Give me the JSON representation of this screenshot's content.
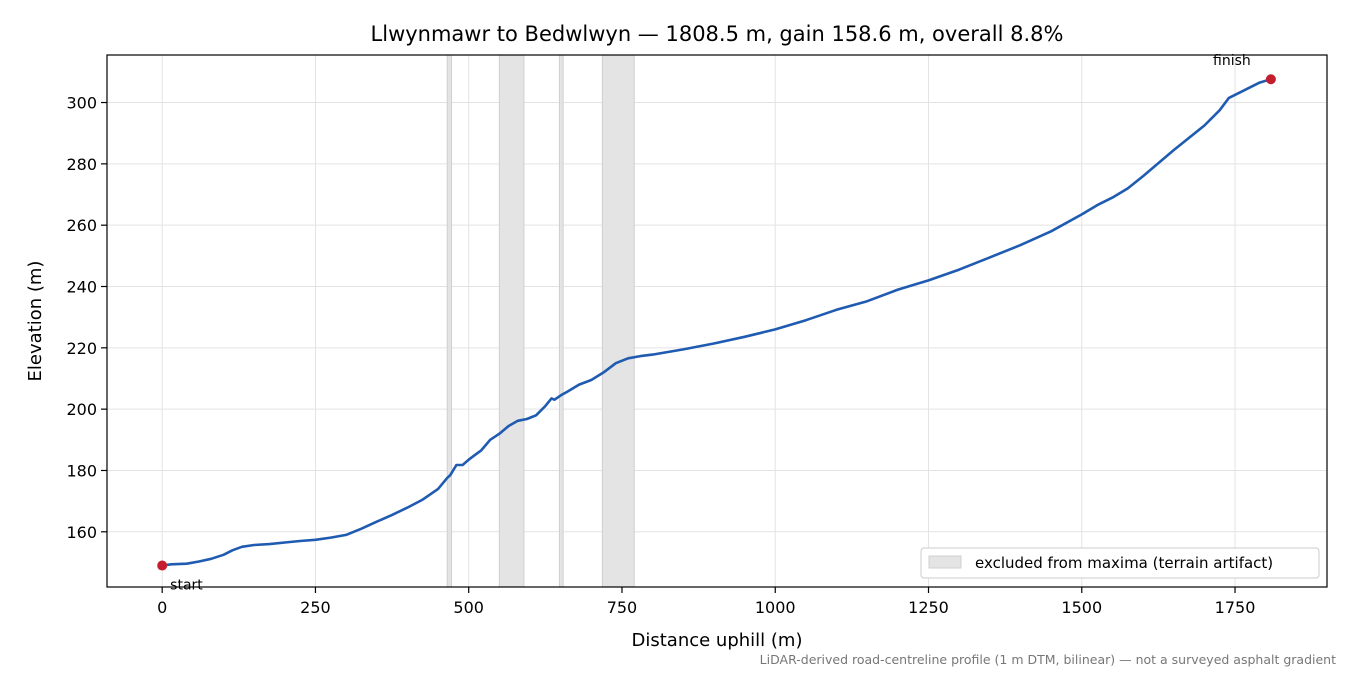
{
  "chart_data": {
    "type": "line",
    "title": "Llwynmawr to Bedwlwyn — 1808.5 m, gain 158.6 m, overall 8.8%",
    "xlabel": "Distance uphill (m)",
    "ylabel": "Elevation (m)",
    "xlim": [
      -90,
      1900
    ],
    "ylim": [
      142,
      315.5
    ],
    "x_ticks": [
      0,
      250,
      500,
      750,
      1000,
      1250,
      1500,
      1750
    ],
    "y_ticks": [
      160,
      180,
      200,
      220,
      240,
      260,
      280,
      300
    ],
    "grid": true,
    "legend_position": "lower-right",
    "series": [
      {
        "color": "#1f5bb0",
        "points": [
          [
            0,
            149
          ],
          [
            15,
            149.4
          ],
          [
            40,
            149.6
          ],
          [
            60,
            150.3
          ],
          [
            80,
            151.2
          ],
          [
            100,
            152.5
          ],
          [
            115,
            154
          ],
          [
            130,
            155.1
          ],
          [
            150,
            155.7
          ],
          [
            175,
            156
          ],
          [
            200,
            156.5
          ],
          [
            225,
            157
          ],
          [
            250,
            157.4
          ],
          [
            275,
            158.1
          ],
          [
            300,
            159
          ],
          [
            325,
            161
          ],
          [
            350,
            163.3
          ],
          [
            375,
            165.5
          ],
          [
            400,
            167.9
          ],
          [
            425,
            170.5
          ],
          [
            450,
            174
          ],
          [
            465,
            177.6
          ],
          [
            470,
            178.5
          ],
          [
            480,
            181.8
          ],
          [
            490,
            181.8
          ],
          [
            500,
            183.5
          ],
          [
            510,
            185
          ],
          [
            520,
            186.5
          ],
          [
            535,
            190
          ],
          [
            550,
            192
          ],
          [
            565,
            194.5
          ],
          [
            580,
            196.2
          ],
          [
            595,
            196.8
          ],
          [
            610,
            198
          ],
          [
            625,
            201
          ],
          [
            635,
            203.5
          ],
          [
            640,
            203.1
          ],
          [
            650,
            204.5
          ],
          [
            660,
            205.6
          ],
          [
            680,
            208
          ],
          [
            700,
            209.5
          ],
          [
            720,
            212
          ],
          [
            740,
            215
          ],
          [
            760,
            216.6
          ],
          [
            780,
            217.3
          ],
          [
            800,
            217.8
          ],
          [
            850,
            219.5
          ],
          [
            900,
            221.4
          ],
          [
            950,
            223.6
          ],
          [
            1000,
            226
          ],
          [
            1050,
            229
          ],
          [
            1100,
            232.4
          ],
          [
            1150,
            235.2
          ],
          [
            1200,
            239
          ],
          [
            1250,
            242
          ],
          [
            1300,
            245.5
          ],
          [
            1350,
            249.5
          ],
          [
            1400,
            253.5
          ],
          [
            1450,
            258
          ],
          [
            1500,
            263.5
          ],
          [
            1525,
            266.5
          ],
          [
            1550,
            269
          ],
          [
            1575,
            272
          ],
          [
            1600,
            276
          ],
          [
            1650,
            284.5
          ],
          [
            1700,
            292.5
          ],
          [
            1725,
            297.5
          ],
          [
            1740,
            301.5
          ],
          [
            1760,
            303.5
          ],
          [
            1790,
            306.5
          ],
          [
            1808.5,
            307.6
          ]
        ]
      }
    ],
    "excluded_ranges": [
      [
        465,
        472
      ],
      [
        550,
        590
      ],
      [
        648,
        654
      ],
      [
        718,
        770
      ]
    ],
    "excluded_color": "#e4e4e4",
    "markers": {
      "start": {
        "x": 0,
        "y": 149,
        "label": "start"
      },
      "finish": {
        "x": 1808.5,
        "y": 307.6,
        "label": "finish"
      },
      "color": "#c41e2e"
    },
    "legend": {
      "label": "excluded from maxima (terrain artifact)"
    },
    "footnote": "LiDAR-derived road-centreline profile (1 m DTM, bilinear) — not a surveyed asphalt gradient"
  }
}
